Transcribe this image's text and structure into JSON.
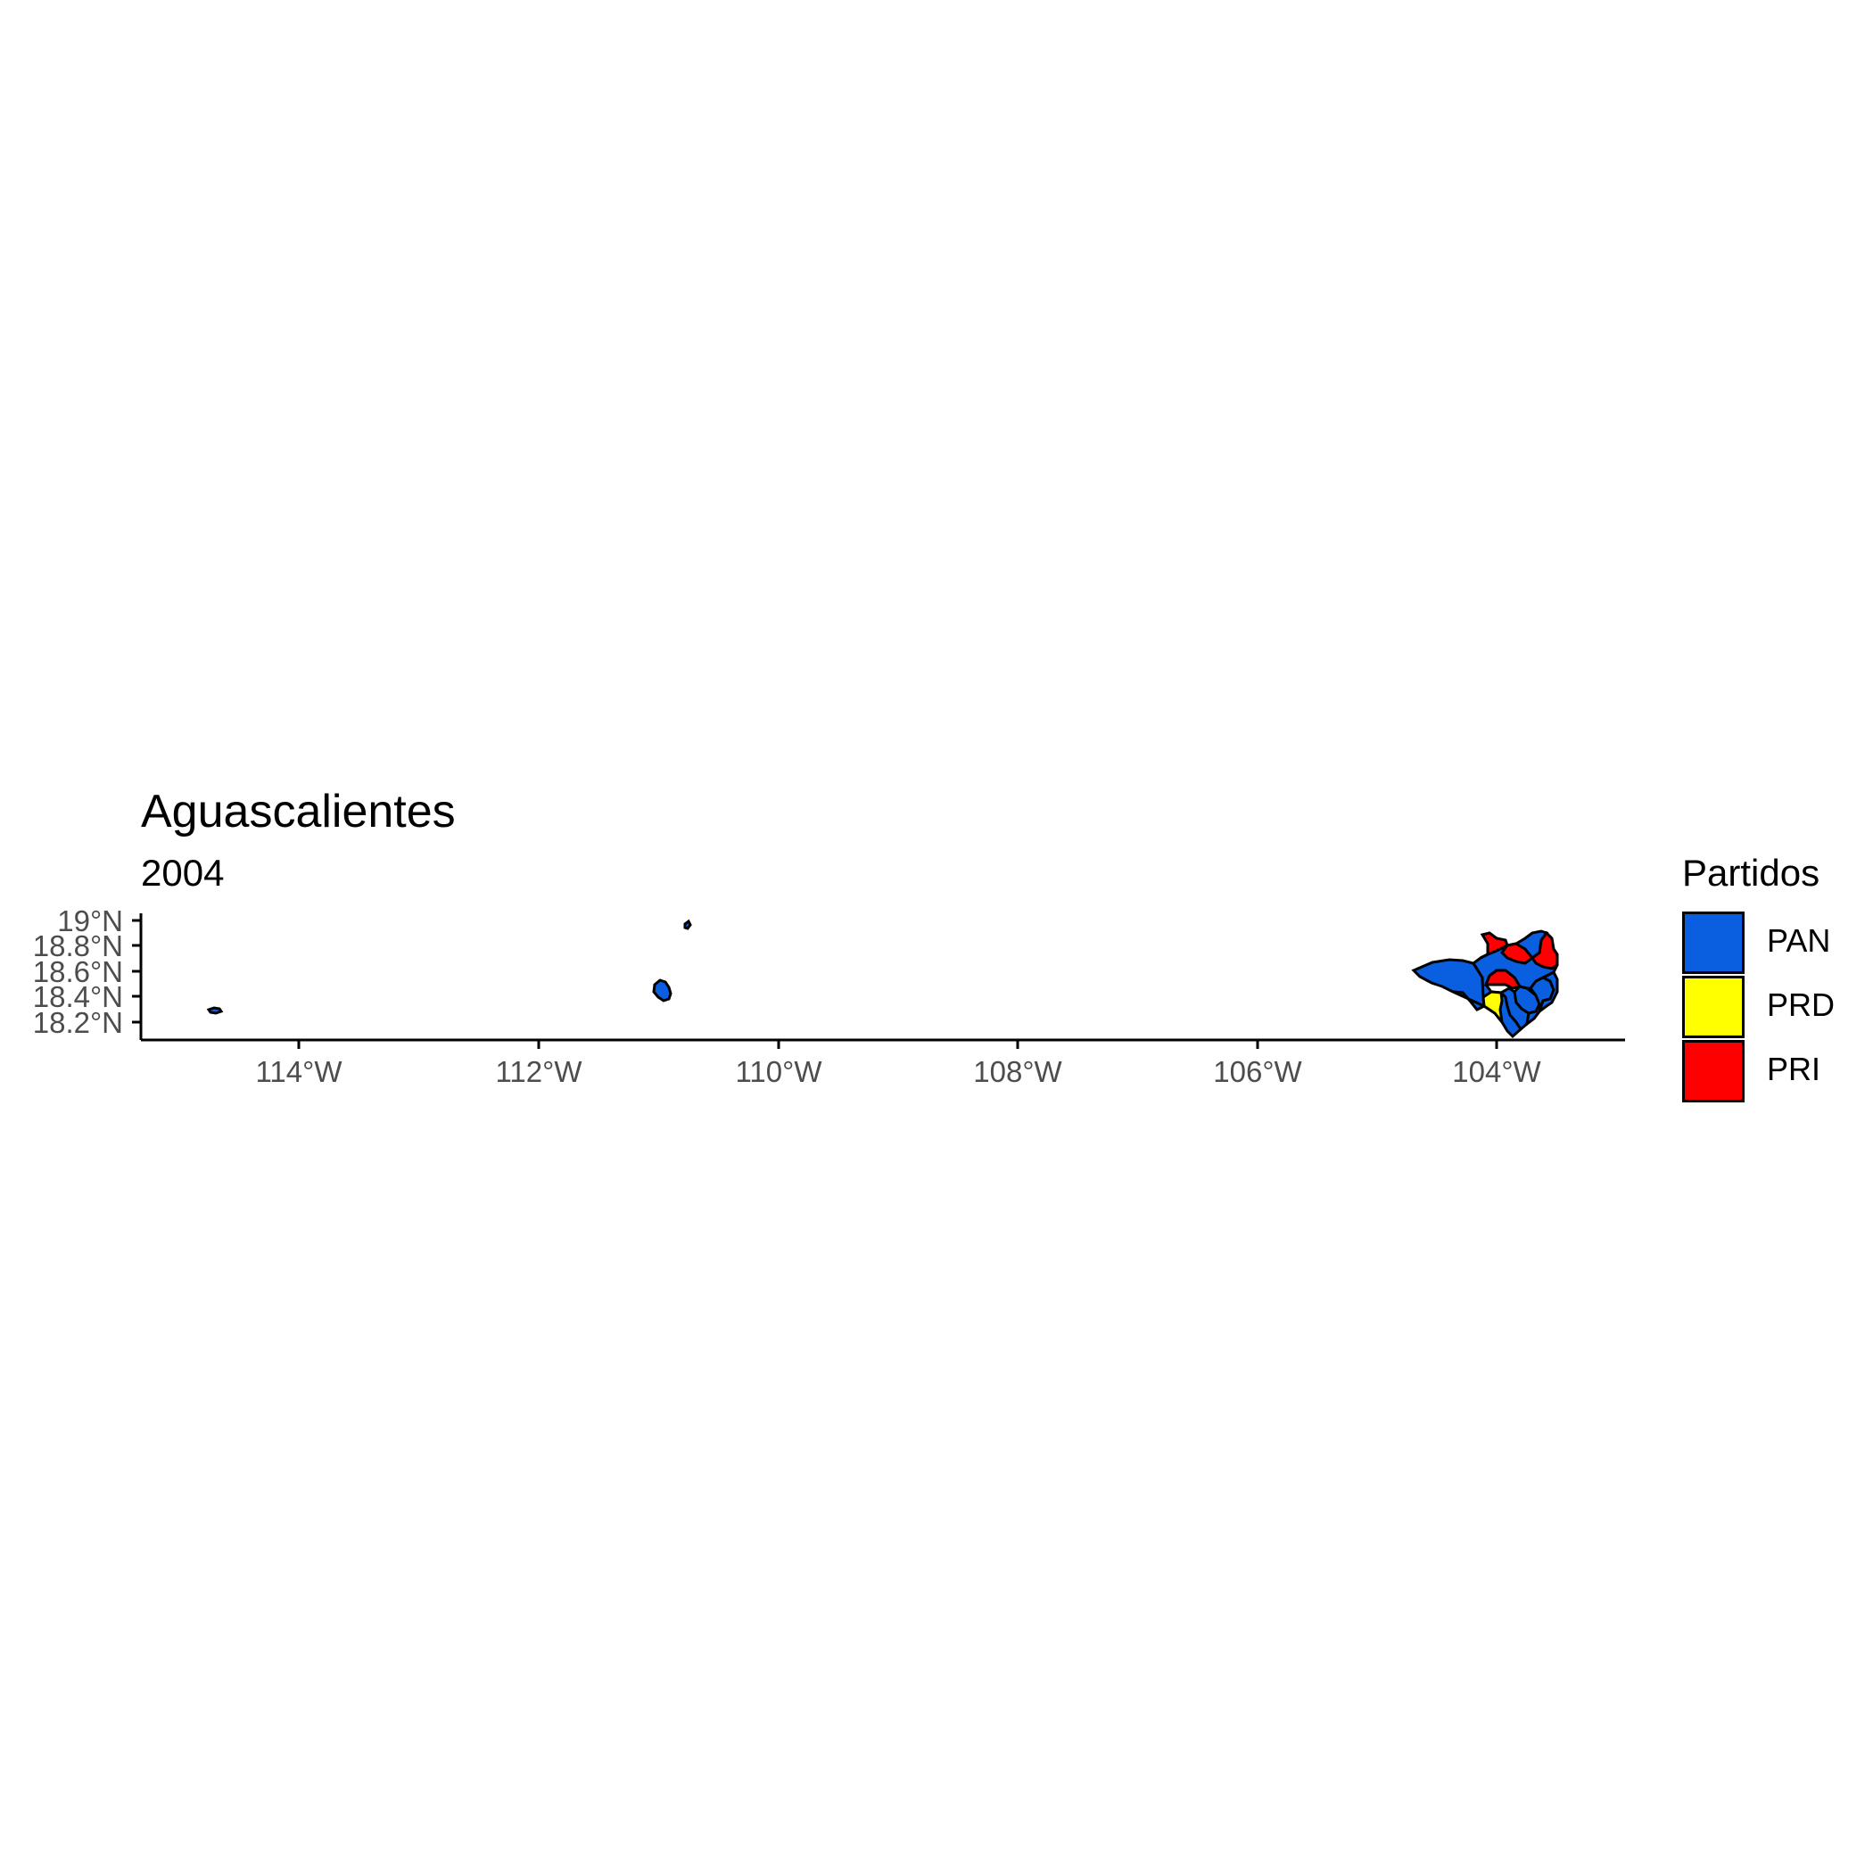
{
  "title": "Aguascalientes",
  "subtitle": "2004",
  "legend": {
    "title": "Partidos",
    "items": [
      {
        "label": "PAN",
        "color": "#0a5ee0"
      },
      {
        "label": "PRD",
        "color": "#ffff00"
      },
      {
        "label": "PRI",
        "color": "#ff0000"
      }
    ]
  },
  "chart_data": {
    "type": "map",
    "x_axis": {
      "ticks": [
        "114°W",
        "112°W",
        "110°W",
        "108°W",
        "106°W",
        "104°W"
      ],
      "range_deg_w": [
        115.3,
        102.9
      ]
    },
    "y_axis": {
      "ticks": [
        "18.2°N",
        "18.4°N",
        "18.6°N",
        "18.8°N",
        "19°N"
      ],
      "range_deg_n": [
        18.1,
        19.05
      ]
    },
    "regions": [
      {
        "party": "PAN"
      },
      {
        "party": "PAN"
      },
      {
        "party": "PAN"
      },
      {
        "party": "PAN"
      },
      {
        "party": "PAN"
      },
      {
        "party": "PAN"
      },
      {
        "party": "PAN"
      },
      {
        "party": "PAN"
      },
      {
        "party": "PRD"
      },
      {
        "party": "PRI"
      },
      {
        "party": "PRI"
      },
      {
        "party": "PRI"
      },
      {
        "party": "PRI"
      }
    ]
  }
}
